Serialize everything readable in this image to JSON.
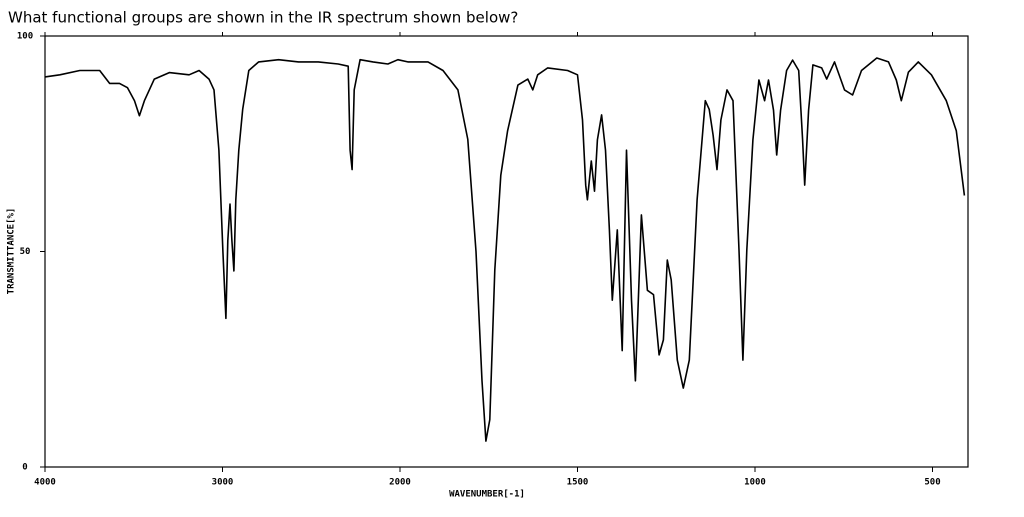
{
  "chart_data": {
    "type": "line",
    "title": "What functional groups are shown in the IR spectrum shown below?",
    "x_label": "WAVENUMBER[-1]",
    "y_label": "TRANSMITTANCE[%]",
    "xlim": [
      4000,
      400
    ],
    "ylim": [
      0,
      100
    ],
    "x_scale_change": {
      "at": 2000,
      "factor": 2
    },
    "xticks": [
      4000,
      3000,
      2000,
      1500,
      1000,
      500
    ],
    "yticks": [
      0,
      50,
      100
    ],
    "color": "#000000",
    "x": [
      4000,
      3916,
      3804,
      3692,
      3636,
      3580,
      3535,
      3496,
      3468,
      3440,
      3384,
      3300,
      3188,
      3132,
      3076,
      3048,
      3020,
      2998,
      2981,
      2970,
      2958,
      2947,
      2936,
      2925,
      2908,
      2886,
      2852,
      2796,
      2684,
      2572,
      2460,
      2348,
      2292,
      2281,
      2270,
      2258,
      2225,
      2152,
      2068,
      2012,
      1978,
      1921,
      1879,
      1837,
      1809,
      1786,
      1769,
      1758,
      1747,
      1733,
      1716,
      1697,
      1668,
      1640,
      1626,
      1612,
      1584,
      1528,
      1500,
      1486,
      1477,
      1472,
      1461,
      1452,
      1444,
      1432,
      1421,
      1410,
      1402,
      1388,
      1374,
      1362,
      1348,
      1337,
      1320,
      1303,
      1286,
      1270,
      1258,
      1247,
      1236,
      1219,
      1202,
      1185,
      1163,
      1140,
      1129,
      1118,
      1107,
      1096,
      1079,
      1062,
      1045,
      1034,
      1023,
      1006,
      989,
      973,
      962,
      948,
      939,
      928,
      911,
      894,
      877,
      866,
      860,
      849,
      837,
      812,
      798,
      776,
      748,
      725,
      700,
      657,
      624,
      602,
      588,
      568,
      540,
      503,
      461,
      433,
      410
    ],
    "values": [
      90.5,
      91,
      92,
      92,
      89,
      89,
      88,
      85,
      81.5,
      85,
      90,
      91.5,
      91,
      92,
      90,
      87.5,
      73.5,
      50,
      34.5,
      52.5,
      61,
      52.5,
      45.5,
      62,
      73.5,
      83,
      92,
      94,
      94.5,
      94,
      94,
      93.5,
      93,
      73.5,
      69,
      87.5,
      94.5,
      94,
      93.5,
      94.5,
      94,
      94,
      92,
      87.5,
      76,
      50,
      20,
      6,
      11,
      45.7,
      67.7,
      78,
      88.6,
      90,
      87.5,
      91,
      92.6,
      92,
      91,
      80.5,
      65.4,
      62,
      71,
      64,
      75.9,
      81.7,
      73.5,
      55,
      38.7,
      55,
      27,
      73.5,
      38.7,
      20,
      58.5,
      41,
      40,
      26,
      29.5,
      48,
      43.4,
      24.8,
      18.3,
      24.8,
      62,
      85,
      83,
      77,
      69,
      80.5,
      87.5,
      85,
      50.3,
      24.8,
      50.3,
      75.9,
      89.8,
      85,
      89.8,
      82.8,
      72.4,
      82.8,
      92,
      94.4,
      92,
      75.9,
      65.4,
      82.8,
      93.3,
      92.6,
      90,
      94,
      87.5,
      86.3,
      92,
      94.9,
      94,
      89.8,
      85,
      91.6,
      94,
      91,
      85,
      78,
      63
    ]
  }
}
